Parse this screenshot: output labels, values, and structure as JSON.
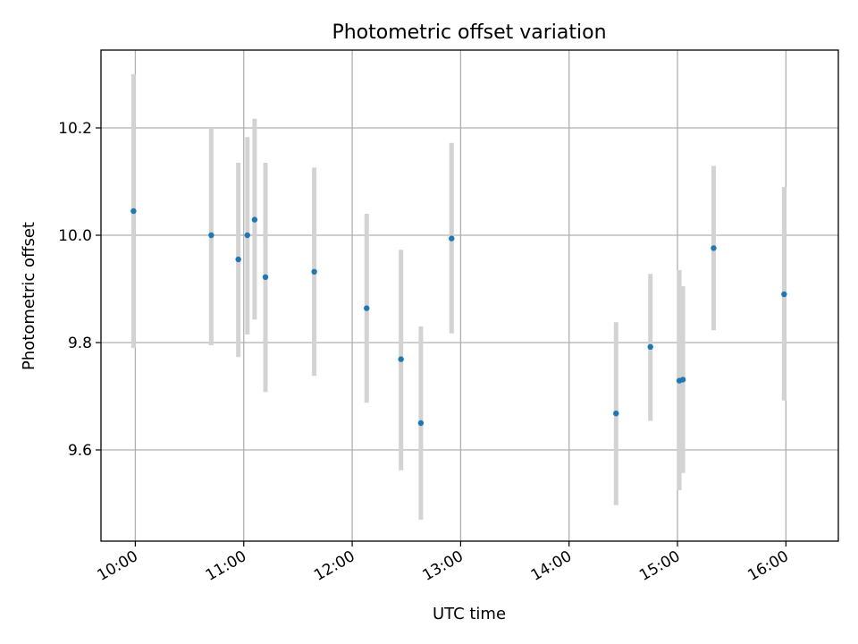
{
  "chart_data": {
    "type": "scatter",
    "title": "Photometric offset variation",
    "xlabel": "UTC time",
    "ylabel": "Photometric offset",
    "x_ticks": [
      "10:00",
      "11:00",
      "12:00",
      "13:00",
      "14:00",
      "15:00",
      "16:00"
    ],
    "y_ticks": [
      "9.6",
      "9.8",
      "10.0",
      "10.2"
    ],
    "y_tick_values": [
      9.6,
      9.8,
      10.0,
      10.2
    ],
    "xlim": [
      "09:41",
      "16:29"
    ],
    "ylim": [
      9.43,
      10.345
    ],
    "grid": true,
    "marker_color": "#1f77b4",
    "errorbar_color": "#d3d3d3",
    "points": [
      {
        "time": "09:59",
        "y": 10.045,
        "y_low": 9.79,
        "y_high": 10.3
      },
      {
        "time": "10:42",
        "y": 10.0,
        "y_low": 9.795,
        "y_high": 10.2
      },
      {
        "time": "10:57",
        "y": 9.955,
        "y_low": 9.773,
        "y_high": 10.135
      },
      {
        "time": "11:02",
        "y": 10.0,
        "y_low": 9.815,
        "y_high": 10.183
      },
      {
        "time": "11:06",
        "y": 10.029,
        "y_low": 9.843,
        "y_high": 10.217
      },
      {
        "time": "11:12",
        "y": 9.922,
        "y_low": 9.708,
        "y_high": 10.135
      },
      {
        "time": "11:39",
        "y": 9.932,
        "y_low": 9.738,
        "y_high": 10.126
      },
      {
        "time": "12:08",
        "y": 9.864,
        "y_low": 9.688,
        "y_high": 10.04
      },
      {
        "time": "12:27",
        "y": 9.769,
        "y_low": 9.562,
        "y_high": 9.973
      },
      {
        "time": "12:38",
        "y": 9.65,
        "y_low": 9.47,
        "y_high": 9.83
      },
      {
        "time": "12:55",
        "y": 9.994,
        "y_low": 9.817,
        "y_high": 10.172
      },
      {
        "time": "14:26",
        "y": 9.668,
        "y_low": 9.497,
        "y_high": 9.838
      },
      {
        "time": "14:45",
        "y": 9.792,
        "y_low": 9.654,
        "y_high": 9.928
      },
      {
        "time": "15:01",
        "y": 9.729,
        "y_low": 9.525,
        "y_high": 9.935
      },
      {
        "time": "15:03",
        "y": 9.731,
        "y_low": 9.557,
        "y_high": 9.905
      },
      {
        "time": "15:20",
        "y": 9.976,
        "y_low": 9.823,
        "y_high": 10.129
      },
      {
        "time": "15:59",
        "y": 9.89,
        "y_low": 9.692,
        "y_high": 10.09
      }
    ]
  }
}
